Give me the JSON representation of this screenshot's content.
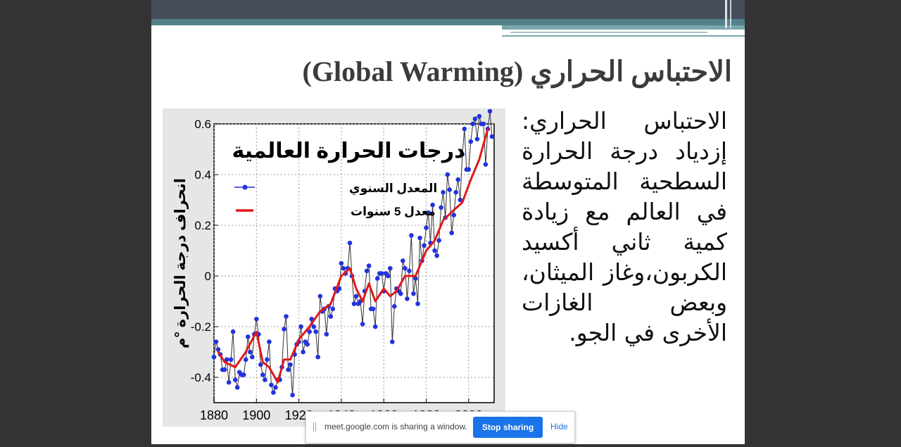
{
  "slide": {
    "title": "الاحتباس الحراري (Global Warming)",
    "body": "الاحتباس الحراري: إزدياد درجة الحرارة السطحية المتوسطة في العالم مع زيادة كمية ثاني أكسيد الكربون،وغاز الميثان، وبعض الغازات الأخرى في الجو."
  },
  "chart_data": {
    "type": "line",
    "title": "درجات الحرارة العالمية",
    "ylabel": "انحراف درجة الحرارة °م",
    "xlabel": "",
    "xlim": [
      1880,
      2012
    ],
    "ylim": [
      -0.5,
      0.6
    ],
    "x_ticks": [
      1880,
      1900,
      1920,
      1940,
      1960,
      1980,
      2000
    ],
    "y_ticks": [
      0.6,
      0.4,
      0.2,
      0,
      -0.2,
      -0.4
    ],
    "y_tick_labels": [
      "0.6",
      "0.4",
      "0.2",
      "0",
      "-0.2",
      "-0.4"
    ],
    "grid": true,
    "legend_position": "top-left",
    "series": [
      {
        "name": "المعدل السنوي",
        "color": "#2233dd",
        "x": [
          1880,
          1881,
          1882,
          1883,
          1884,
          1885,
          1886,
          1887,
          1888,
          1889,
          1890,
          1891,
          1892,
          1893,
          1894,
          1895,
          1896,
          1897,
          1898,
          1899,
          1900,
          1901,
          1902,
          1903,
          1904,
          1905,
          1906,
          1907,
          1908,
          1909,
          1910,
          1911,
          1912,
          1913,
          1914,
          1915,
          1916,
          1917,
          1918,
          1919,
          1920,
          1921,
          1922,
          1923,
          1924,
          1925,
          1926,
          1927,
          1928,
          1929,
          1930,
          1931,
          1932,
          1933,
          1934,
          1935,
          1936,
          1937,
          1938,
          1939,
          1940,
          1941,
          1942,
          1943,
          1944,
          1945,
          1946,
          1947,
          1948,
          1949,
          1950,
          1951,
          1952,
          1953,
          1954,
          1955,
          1956,
          1957,
          1958,
          1959,
          1960,
          1961,
          1962,
          1963,
          1964,
          1965,
          1966,
          1967,
          1968,
          1969,
          1970,
          1971,
          1972,
          1973,
          1974,
          1975,
          1976,
          1977,
          1978,
          1979,
          1980,
          1981,
          1982,
          1983,
          1984,
          1985,
          1986,
          1987,
          1988,
          1989,
          1990,
          1991,
          1992,
          1993,
          1994,
          1995,
          1996,
          1997,
          1998,
          1999,
          2000,
          2001,
          2002,
          2003,
          2004,
          2005,
          2006,
          2007,
          2008,
          2009,
          2010,
          2011
        ],
        "values": [
          -0.32,
          -0.26,
          -0.29,
          -0.31,
          -0.37,
          -0.37,
          -0.33,
          -0.42,
          -0.33,
          -0.22,
          -0.41,
          -0.44,
          -0.38,
          -0.39,
          -0.39,
          -0.33,
          -0.24,
          -0.3,
          -0.32,
          -0.23,
          -0.17,
          -0.23,
          -0.35,
          -0.39,
          -0.41,
          -0.33,
          -0.26,
          -0.43,
          -0.46,
          -0.44,
          -0.41,
          -0.41,
          -0.36,
          -0.21,
          -0.16,
          -0.37,
          -0.35,
          -0.47,
          -0.31,
          -0.27,
          -0.26,
          -0.2,
          -0.3,
          -0.26,
          -0.27,
          -0.22,
          -0.17,
          -0.2,
          -0.22,
          -0.32,
          -0.08,
          -0.14,
          -0.13,
          -0.23,
          -0.12,
          -0.16,
          -0.13,
          -0.05,
          -0.06,
          -0.05,
          0.05,
          0.03,
          0.01,
          0.03,
          0.13,
          0.0,
          -0.11,
          -0.08,
          -0.11,
          -0.1,
          -0.19,
          -0.06,
          0.02,
          0.04,
          -0.13,
          -0.13,
          -0.2,
          -0.01,
          0.01,
          0.01,
          -0.06,
          0.01,
          0.0,
          0.03,
          -0.26,
          -0.12,
          -0.05,
          -0.06,
          -0.07,
          0.06,
          0.03,
          -0.09,
          0.02,
          0.16,
          -0.07,
          -0.01,
          -0.11,
          0.15,
          0.06,
          0.12,
          0.19,
          0.25,
          0.13,
          0.28,
          0.1,
          0.08,
          0.14,
          0.27,
          0.33,
          0.23,
          0.4,
          0.34,
          0.17,
          0.24,
          0.33,
          0.38,
          0.3,
          0.48,
          0.58,
          0.42,
          0.42,
          0.53,
          0.6,
          0.62,
          0.54,
          0.63,
          0.6,
          0.6,
          0.44,
          0.58,
          0.65,
          0.55
        ]
      },
      {
        "name": "معدل 5 سنوات",
        "color": "#e01818",
        "x": [
          1882,
          1885,
          1890,
          1895,
          1900,
          1903,
          1906,
          1910,
          1913,
          1916,
          1920,
          1925,
          1930,
          1935,
          1940,
          1944,
          1947,
          1950,
          1953,
          1956,
          1960,
          1963,
          1966,
          1970,
          1975,
          1980,
          1984,
          1988,
          1993,
          1997,
          2001,
          2005,
          2009
        ],
        "values": [
          -0.3,
          -0.34,
          -0.36,
          -0.3,
          -0.22,
          -0.34,
          -0.36,
          -0.42,
          -0.33,
          -0.33,
          -0.25,
          -0.2,
          -0.14,
          -0.11,
          0.0,
          0.03,
          -0.05,
          -0.1,
          -0.03,
          -0.1,
          -0.05,
          -0.08,
          -0.06,
          0.0,
          0.0,
          0.1,
          0.14,
          0.22,
          0.26,
          0.29,
          0.38,
          0.46,
          0.58
        ]
      }
    ]
  },
  "screen_share": {
    "message": "meet.google.com is sharing a window.",
    "stop_label": "Stop sharing",
    "hide_label": "Hide"
  }
}
